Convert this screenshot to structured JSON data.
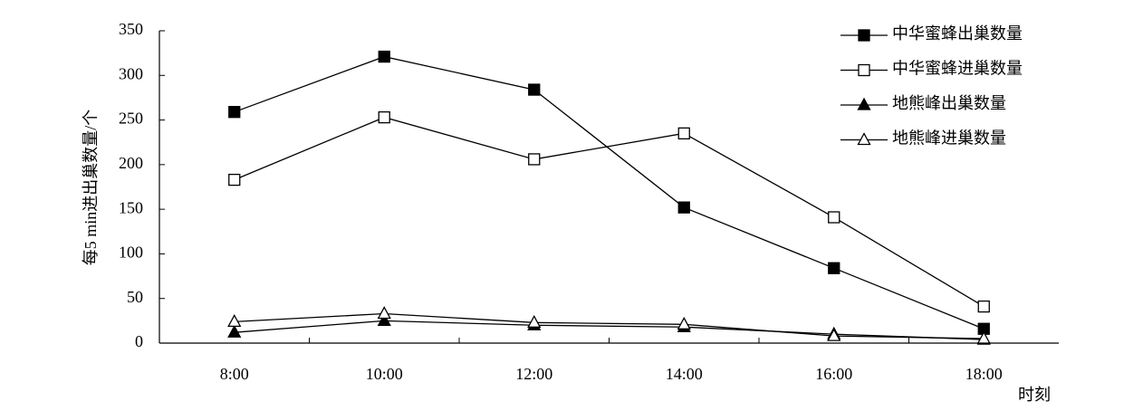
{
  "chart_data": {
    "type": "line",
    "x_label": "时刻",
    "y_label": "每5 min进出巢数量/个",
    "categories": [
      "8:00",
      "10:00",
      "12:00",
      "14:00",
      "16:00",
      "18:00"
    ],
    "series": [
      {
        "name": "中华蜜蜂出巢数量",
        "color": "#000000",
        "marker": "square",
        "marker_fill": "#000000",
        "values": [
          259,
          321,
          284,
          152,
          84,
          16
        ]
      },
      {
        "name": "中华蜜蜂进巢数量",
        "color": "#000000",
        "marker": "square",
        "marker_fill": "#ffffff",
        "values": [
          183,
          253,
          206,
          235,
          141,
          41
        ]
      },
      {
        "name": "地熊峰出巢数量",
        "color": "#000000",
        "marker": "triangle",
        "marker_fill": "#000000",
        "values": [
          12,
          25,
          20,
          18,
          10,
          4
        ]
      },
      {
        "name": "地熊峰进巢数量",
        "color": "#000000",
        "marker": "triangle",
        "marker_fill": "#ffffff",
        "values": [
          24,
          33,
          23,
          21,
          8,
          5
        ]
      }
    ],
    "ylim": [
      0,
      350
    ],
    "yticks": [
      0,
      50,
      100,
      150,
      200,
      250,
      300,
      350
    ],
    "grid": false,
    "legend": "upper right"
  }
}
